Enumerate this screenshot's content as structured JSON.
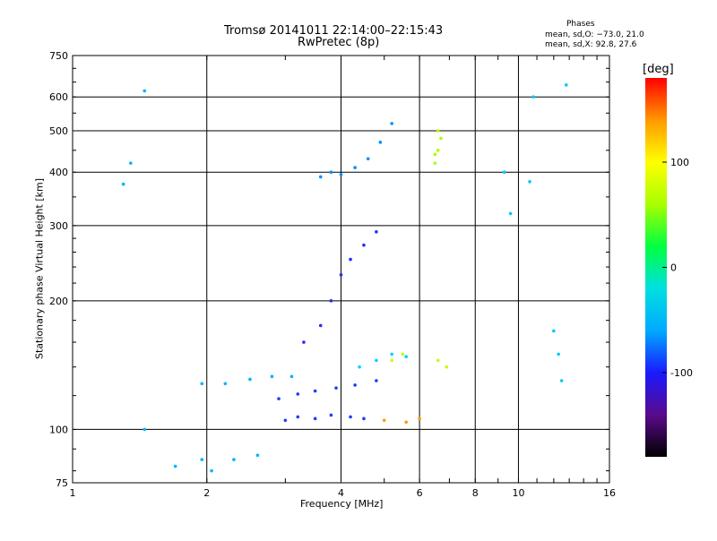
{
  "header": {
    "title_line1": "Tromsø 20141011 22:14:00–22:15:43",
    "title_line2": "RwPretec (8p)",
    "phases_heading": "Phases",
    "phases_o": "mean, sd,O: −73.0, 21.0",
    "phases_x": "mean, sd,X:  92.8, 27.6"
  },
  "chart_data": {
    "type": "scatter",
    "title": "Tromsø 20141011 22:14:00–22:15:43",
    "subtitle": "RwPretec (8p)",
    "xlabel": "Frequency [MHz]",
    "ylabel": "Stationary phase Virtual Height [km]",
    "x_scale": "log2",
    "y_scale": "log",
    "xlim": [
      1,
      16
    ],
    "ylim": [
      75,
      750
    ],
    "x_ticks": [
      1,
      2,
      4,
      6,
      8,
      10,
      16
    ],
    "y_ticks": [
      75,
      100,
      200,
      300,
      400,
      500,
      600,
      750
    ],
    "grid": true,
    "colorbar": {
      "label": "[deg]",
      "range": [
        -180,
        180
      ],
      "ticks": [
        -100,
        0,
        100
      ],
      "colormap": [
        "#000000",
        "#5a0a8c",
        "#1a1aff",
        "#00aaff",
        "#00e0e0",
        "#00ff40",
        "#a8ff00",
        "#ffff00",
        "#ff9900",
        "#ff0000"
      ]
    },
    "series": [
      {
        "color": "#1a3cff",
        "points": [
          [
            3.0,
            105
          ],
          [
            3.2,
            107
          ],
          [
            3.5,
            106
          ],
          [
            3.8,
            108
          ],
          [
            4.2,
            107
          ],
          [
            4.5,
            106
          ]
        ]
      },
      {
        "color": "#1a3cff",
        "points": [
          [
            2.9,
            118
          ],
          [
            3.2,
            121
          ],
          [
            3.5,
            123
          ],
          [
            3.9,
            125
          ],
          [
            4.3,
            127
          ],
          [
            4.8,
            130
          ]
        ]
      },
      {
        "color": "#00b4ff",
        "points": [
          [
            1.95,
            128
          ],
          [
            2.2,
            128
          ],
          [
            2.5,
            131
          ],
          [
            2.8,
            133
          ],
          [
            3.1,
            133
          ]
        ]
      },
      {
        "color": "#2a2aff",
        "points": [
          [
            3.3,
            160
          ],
          [
            3.6,
            175
          ],
          [
            3.8,
            200
          ],
          [
            4.0,
            230
          ],
          [
            4.2,
            250
          ],
          [
            4.5,
            270
          ],
          [
            4.8,
            290
          ]
        ]
      },
      {
        "color": "#0090ff",
        "points": [
          [
            3.6,
            390
          ],
          [
            3.8,
            400
          ],
          [
            4.0,
            395
          ],
          [
            4.3,
            410
          ],
          [
            4.6,
            430
          ],
          [
            4.9,
            470
          ],
          [
            5.2,
            520
          ]
        ]
      },
      {
        "color": "#00d0ff",
        "points": [
          [
            4.4,
            140
          ],
          [
            4.8,
            145
          ],
          [
            5.2,
            150
          ],
          [
            5.6,
            148
          ]
        ]
      },
      {
        "color": "#c0ff00",
        "points": [
          [
            5.2,
            145
          ],
          [
            5.5,
            150
          ],
          [
            6.6,
            145
          ],
          [
            6.9,
            140
          ]
        ]
      },
      {
        "color": "#a8ff00",
        "points": [
          [
            6.5,
            420
          ],
          [
            6.6,
            450
          ],
          [
            6.7,
            480
          ],
          [
            6.6,
            500
          ],
          [
            6.5,
            440
          ]
        ]
      },
      {
        "color": "#ff9900",
        "points": [
          [
            5.0,
            105
          ],
          [
            5.6,
            104
          ],
          [
            6.0,
            106
          ]
        ]
      },
      {
        "color": "#00b4ff",
        "points": [
          [
            1.3,
            375
          ],
          [
            1.35,
            420
          ],
          [
            1.45,
            620
          ],
          [
            1.45,
            100
          ],
          [
            1.7,
            82
          ],
          [
            1.95,
            85
          ],
          [
            2.05,
            80
          ],
          [
            2.3,
            85
          ],
          [
            2.6,
            87
          ]
        ]
      },
      {
        "color": "#00c8ff",
        "points": [
          [
            12.0,
            170
          ],
          [
            12.3,
            150
          ],
          [
            12.5,
            130
          ],
          [
            12.8,
            640
          ],
          [
            9.3,
            400
          ],
          [
            9.6,
            320
          ],
          [
            10.6,
            380
          ],
          [
            10.8,
            600
          ]
        ]
      }
    ]
  }
}
